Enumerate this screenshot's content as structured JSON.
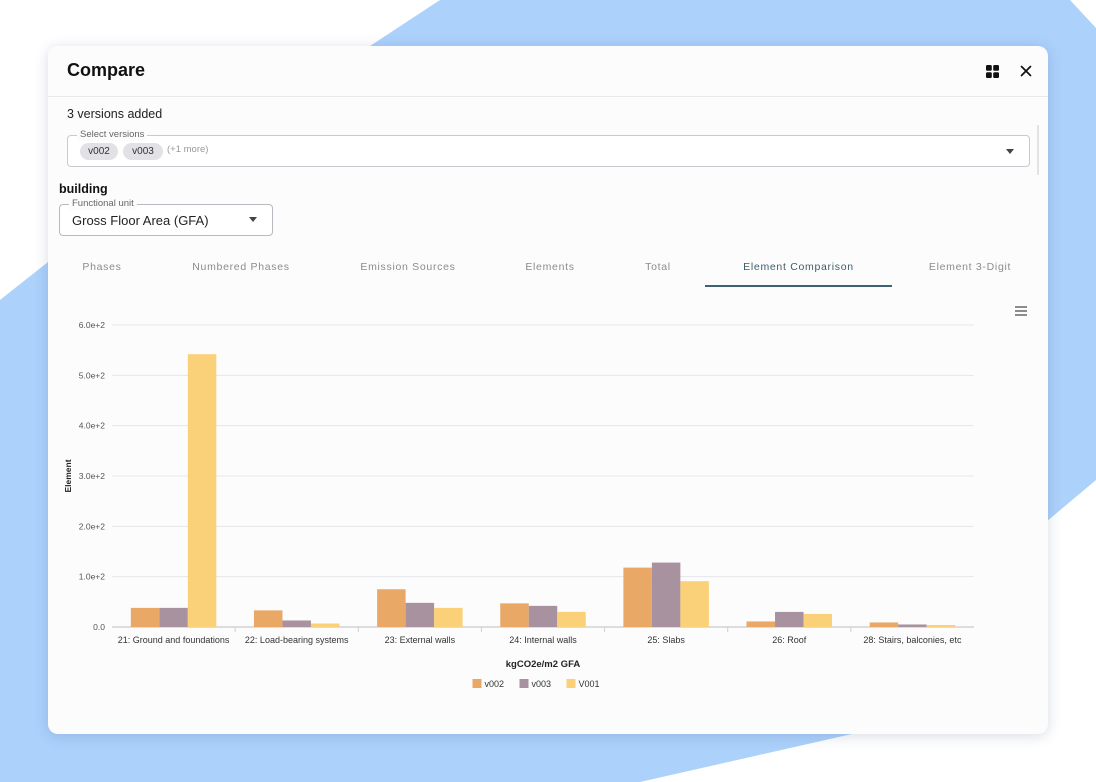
{
  "dialog": {
    "title": "Compare"
  },
  "header_icons": {
    "layout": "layout-icon",
    "close": "close-icon"
  },
  "versions": {
    "count_text": "3 versions added",
    "select_label": "Select versions",
    "chips": [
      "v002",
      "v003"
    ],
    "more_text": "(+1 more)"
  },
  "building": {
    "title": "building",
    "functional_unit_label": "Functional unit",
    "functional_unit_value": "Gross Floor Area (GFA)"
  },
  "tabs": [
    {
      "label": "Phases",
      "active": false
    },
    {
      "label": "Numbered Phases",
      "active": false
    },
    {
      "label": "Emission Sources",
      "active": false
    },
    {
      "label": "Elements",
      "active": false
    },
    {
      "label": "Total",
      "active": false
    },
    {
      "label": "Element Comparison",
      "active": true
    },
    {
      "label": "Element 3-Digit",
      "active": false
    }
  ],
  "chart_data": {
    "type": "bar",
    "title": "",
    "ylabel": "Element",
    "xlabel": "kgCO2e/m2 GFA",
    "ylim": [
      0,
      600
    ],
    "yticks": [
      "0.0",
      "1.0e+2",
      "2.0e+2",
      "3.0e+2",
      "4.0e+2",
      "5.0e+2",
      "6.0e+2"
    ],
    "categories": [
      "21: Ground and foundations",
      "22: Load-bearing systems",
      "23: External walls",
      "24: Internal walls",
      "25: Slabs",
      "26: Roof",
      "28: Stairs, balconies, etc"
    ],
    "series": [
      {
        "name": "v002",
        "color": "#e9a866",
        "values": [
          38,
          33,
          75,
          47,
          118,
          11,
          9
        ]
      },
      {
        "name": "v003",
        "color": "#a8929f",
        "values": [
          38,
          13,
          48,
          42,
          128,
          30,
          5
        ]
      },
      {
        "name": "V001",
        "color": "#fad078",
        "values": [
          542,
          7,
          38,
          30,
          91,
          26,
          4
        ]
      }
    ],
    "legend_position": "bottom"
  }
}
